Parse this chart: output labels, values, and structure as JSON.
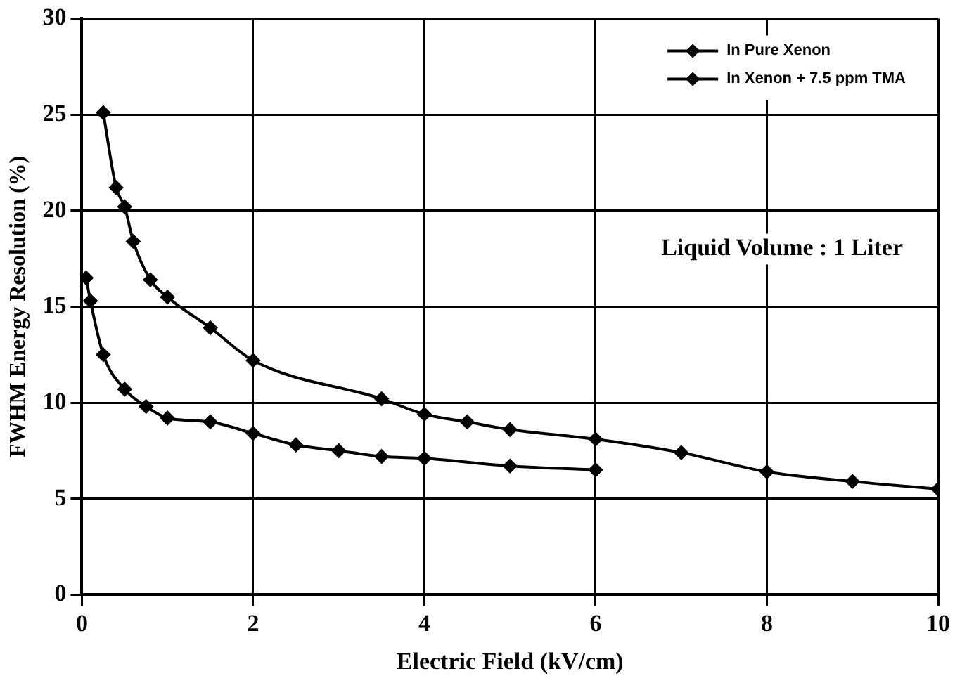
{
  "chart_data": {
    "type": "line",
    "xlabel": "Electric Field (kV/cm)",
    "ylabel": "FWHM Energy Resolution (%)",
    "xlim": [
      0,
      10
    ],
    "xticks": [
      0,
      2,
      4,
      6,
      8,
      10
    ],
    "ylim": [
      0,
      30
    ],
    "yticks": [
      0,
      5,
      10,
      15,
      20,
      25,
      30
    ],
    "grid": true,
    "legend": "top right",
    "marker": "diamond",
    "line_style": "solid",
    "annotations": [
      "Liquid Volume : 1 Liter"
    ],
    "series": [
      {
        "name": "In Pure Xenon",
        "color": "#000000",
        "x": [
          0.25,
          0.4,
          0.5,
          0.6,
          0.8,
          1,
          1.5,
          2,
          3.5,
          4,
          4.5,
          5,
          6,
          7,
          8,
          9,
          10
        ],
        "values": [
          25.1,
          21.2,
          20.2,
          18.4,
          16.4,
          15.5,
          13.9,
          12.2,
          10.2,
          9.4,
          9.0,
          8.6,
          8.1,
          7.4,
          6.4,
          5.9,
          5.5
        ]
      },
      {
        "name": "In Xenon + 7.5 ppm TMA",
        "color": "#000000",
        "x": [
          0.05,
          0.1,
          0.25,
          0.5,
          0.75,
          1,
          1.5,
          2,
          2.5,
          3,
          3.5,
          4,
          5,
          6
        ],
        "values": [
          16.5,
          15.3,
          12.5,
          10.7,
          9.8,
          9.2,
          9.0,
          8.4,
          7.8,
          7.5,
          7.2,
          7.1,
          6.7,
          6.5
        ]
      }
    ]
  }
}
